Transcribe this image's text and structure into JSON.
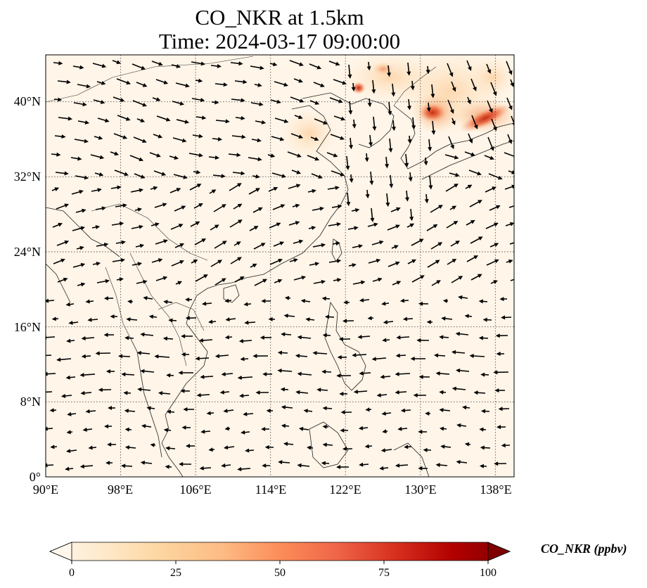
{
  "title": {
    "line1": "CO_NKR at 1.5km",
    "line2": "Time: 2024-03-17 09:00:00"
  },
  "map": {
    "lon_range": [
      90,
      140
    ],
    "lat_range": [
      0,
      45
    ],
    "y_ticks": [
      "0°",
      "8°N",
      "16°N",
      "24°N",
      "32°N",
      "40°N"
    ],
    "x_ticks": [
      "90°E",
      "98°E",
      "106°E",
      "114°E",
      "122°E",
      "130°E",
      "138°E"
    ],
    "gridlines": "dotted",
    "features": [
      "coastlines",
      "country-borders",
      "wind-vectors",
      "CO-concentration-field"
    ]
  },
  "colorbar": {
    "label": "CO_NKR (ppbv)",
    "ticks": [
      "0",
      "25",
      "50",
      "75",
      "100"
    ],
    "range": [
      0,
      100
    ],
    "colormap": "OrRd",
    "colors": [
      "#fff7ec",
      "#fee8c8",
      "#fdd49e",
      "#fdbb84",
      "#fc8d59",
      "#ef6548",
      "#d7301f",
      "#b30000",
      "#7f0000"
    ],
    "extend": "both"
  }
}
